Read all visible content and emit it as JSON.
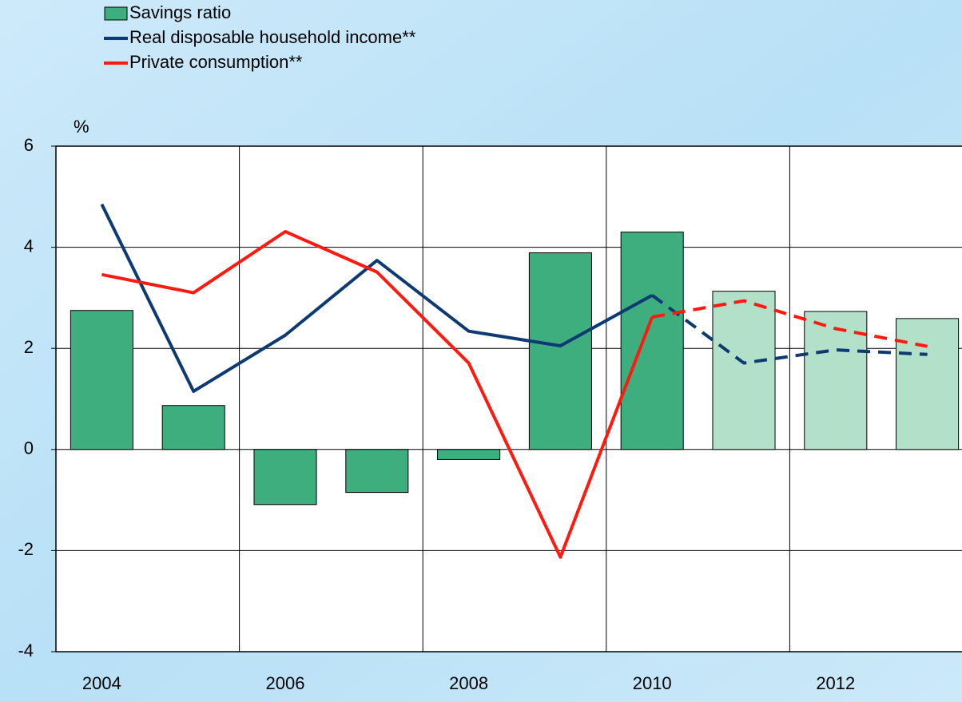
{
  "chart_data": {
    "type": "bar-line",
    "y_label": "%",
    "categories": [
      "2004",
      null,
      "2006",
      null,
      "2008",
      null,
      "2010",
      null,
      "2012",
      null
    ],
    "ylim": [
      -4,
      6
    ],
    "yticks": [
      -4,
      -2,
      0,
      2,
      4,
      6
    ],
    "grid": true,
    "dashed_from_index": 6,
    "series": [
      {
        "name": "Savings ratio",
        "type": "bar",
        "color": "#3fae7f",
        "forecast_color": "#b3e0c9",
        "values": [
          2.75,
          0.87,
          -1.09,
          -0.85,
          -0.2,
          3.89,
          4.3,
          3.13,
          2.73,
          2.59
        ]
      },
      {
        "name": "Real disposable household income**",
        "type": "line",
        "color": "#0d3a73",
        "values": [
          4.85,
          1.15,
          2.26,
          3.74,
          2.34,
          2.05,
          3.05,
          1.71,
          1.97,
          1.88
        ]
      },
      {
        "name": "Private consumption**",
        "type": "line",
        "color": "#ff1a10",
        "values": [
          3.46,
          3.1,
          4.31,
          3.51,
          1.71,
          -2.13,
          2.62,
          2.94,
          2.39,
          2.04
        ]
      }
    ]
  }
}
